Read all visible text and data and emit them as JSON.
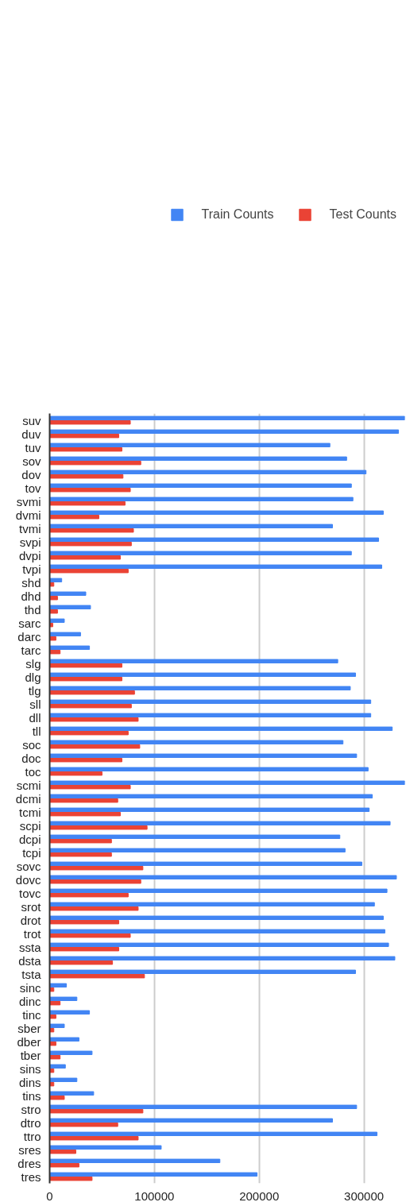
{
  "chart_data": {
    "type": "bar",
    "orientation": "horizontal",
    "categories": [
      "suv",
      "duv",
      "tuv",
      "sov",
      "dov",
      "tov",
      "svmi",
      "dvmi",
      "tvmi",
      "svpi",
      "dvpi",
      "tvpi",
      "shd",
      "dhd",
      "thd",
      "sarc",
      "darc",
      "tarc",
      "slg",
      "dlg",
      "tlg",
      "sll",
      "dll",
      "tll",
      "soc",
      "doc",
      "toc",
      "scmi",
      "dcmi",
      "tcmi",
      "scpi",
      "dcpi",
      "tcpi",
      "sovc",
      "dovc",
      "tovc",
      "srot",
      "drot",
      "trot",
      "ssta",
      "dsta",
      "tsta",
      "sinc",
      "dinc",
      "tinc",
      "sber",
      "dber",
      "tber",
      "sins",
      "dins",
      "tins",
      "stro",
      "dtro",
      "ttro",
      "sres",
      "dres",
      "tres"
    ],
    "series": [
      {
        "name": "Train Counts",
        "color": "#4285f4",
        "values": [
          339000,
          333000,
          267500,
          283500,
          302000,
          288000,
          289500,
          318500,
          270000,
          314000,
          288000,
          317000,
          11500,
          34500,
          39000,
          14000,
          29500,
          38000,
          275000,
          292000,
          287000,
          306500,
          306500,
          327000,
          280000,
          293000,
          304000,
          339000,
          308000,
          305000,
          325000,
          277000,
          282000,
          298000,
          331000,
          322000,
          310000,
          318500,
          320000,
          323500,
          329500,
          292000,
          16000,
          26000,
          38000,
          14000,
          28000,
          40500,
          15000,
          26000,
          42000,
          293000,
          270000,
          312500,
          106500,
          162500,
          198000
        ]
      },
      {
        "name": "Test Counts",
        "color": "#ea4335",
        "values": [
          77000,
          66000,
          69000,
          87000,
          70000,
          77000,
          72000,
          47000,
          80000,
          78000,
          67500,
          75000,
          4000,
          7500,
          7500,
          3000,
          6000,
          10000,
          69000,
          69000,
          81000,
          78000,
          84500,
          75000,
          86000,
          69000,
          50000,
          77000,
          65000,
          67500,
          93000,
          59000,
          59000,
          89000,
          87000,
          75000,
          84500,
          66000,
          77000,
          66000,
          60000,
          90500,
          4000,
          10000,
          6000,
          4000,
          6000,
          10000,
          4000,
          4000,
          14000,
          89000,
          65000,
          84500,
          25000,
          28000,
          40500
        ]
      }
    ],
    "xlim": [
      0,
      339000
    ],
    "xticks": [
      0,
      100000,
      200000,
      300000
    ],
    "grid": "x",
    "legend": "top"
  }
}
